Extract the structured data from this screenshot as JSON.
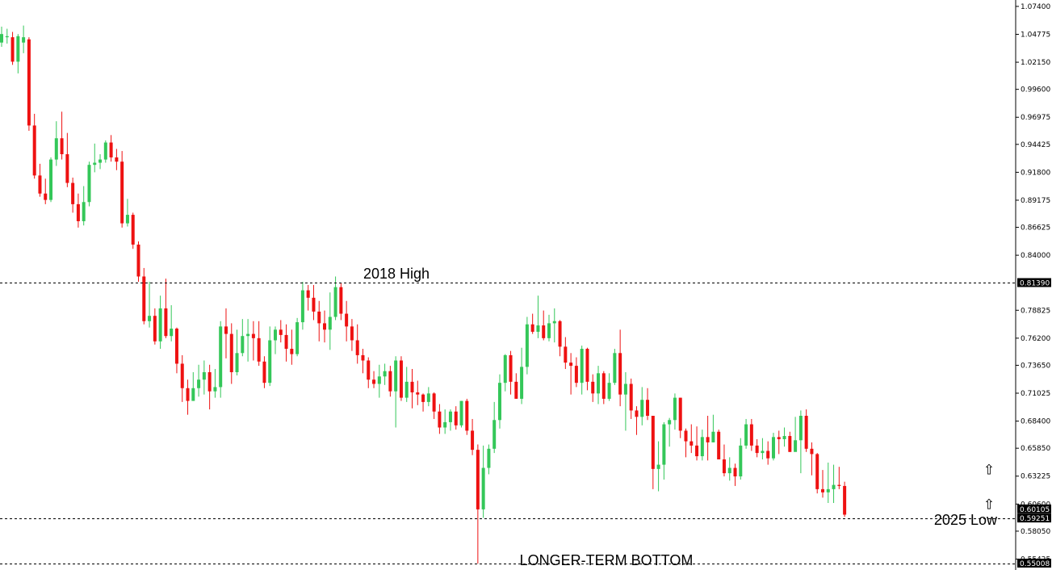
{
  "chart_data": {
    "type": "candlestick",
    "title": "",
    "xlabel": "",
    "ylabel": "",
    "ylim": [
      0.5455,
      1.0785
    ],
    "grid": false,
    "colors": {
      "up": "#34c759",
      "down": "#ee1111",
      "price_tag": "#000000",
      "line": "#000000"
    },
    "y_ticks": [
      "1.07400",
      "1.04775",
      "1.02150",
      "0.99600",
      "0.96975",
      "0.94425",
      "0.91800",
      "0.89175",
      "0.86625",
      "0.84000",
      "0.78825",
      "0.76200",
      "0.73650",
      "0.71025",
      "0.68400",
      "0.65850",
      "0.63225",
      "0.60600",
      "0.58050",
      "0.55425"
    ],
    "price_tags": [
      {
        "value": 0.8139,
        "label": "0.81390"
      },
      {
        "value": 0.60105,
        "label": "0.60105"
      },
      {
        "value": 0.59251,
        "label": "0.59251"
      },
      {
        "value": 0.55008,
        "label": "0.55008"
      }
    ],
    "levels": [
      {
        "value": 0.8139,
        "label": "2018 High"
      },
      {
        "value": 0.5925,
        "label": "2025 Low"
      },
      {
        "value": 0.5501,
        "label": "LONGER-TERM BOTTOM"
      }
    ],
    "arrows": [
      {
        "name": "up-arrow",
        "value": 0.6384
      },
      {
        "name": "up-arrow",
        "value": 0.606
      }
    ],
    "candles": [
      [
        1.04,
        1.048,
        1.055,
        1.036
      ],
      [
        1.045,
        1.046,
        1.053,
        1.039
      ],
      [
        1.045,
        1.022,
        1.05,
        1.019
      ],
      [
        1.022,
        1.046,
        1.048,
        1.011
      ],
      [
        1.04,
        1.045,
        1.056,
        1.03
      ],
      [
        1.043,
        0.962,
        1.045,
        0.957
      ],
      [
        0.962,
        0.915,
        0.973,
        0.912
      ],
      [
        0.915,
        0.898,
        0.926,
        0.895
      ],
      [
        0.898,
        0.892,
        0.912,
        0.888
      ],
      [
        0.892,
        0.93,
        0.932,
        0.89
      ],
      [
        0.93,
        0.95,
        0.966,
        0.924
      ],
      [
        0.95,
        0.935,
        0.975,
        0.93
      ],
      [
        0.935,
        0.908,
        0.955,
        0.904
      ],
      [
        0.908,
        0.888,
        0.913,
        0.88
      ],
      [
        0.888,
        0.872,
        0.898,
        0.866
      ],
      [
        0.872,
        0.89,
        0.905,
        0.868
      ],
      [
        0.89,
        0.925,
        0.928,
        0.886
      ],
      [
        0.925,
        0.927,
        0.945,
        0.918
      ],
      [
        0.927,
        0.93,
        0.935,
        0.921
      ],
      [
        0.93,
        0.946,
        0.948,
        0.927
      ],
      [
        0.946,
        0.932,
        0.953,
        0.928
      ],
      [
        0.932,
        0.928,
        0.94,
        0.92
      ],
      [
        0.928,
        0.87,
        0.938,
        0.866
      ],
      [
        0.87,
        0.878,
        0.893,
        0.867
      ],
      [
        0.878,
        0.85,
        0.88,
        0.846
      ],
      [
        0.85,
        0.82,
        0.853,
        0.815
      ],
      [
        0.82,
        0.778,
        0.828,
        0.775
      ],
      [
        0.778,
        0.783,
        0.815,
        0.772
      ],
      [
        0.783,
        0.759,
        0.79,
        0.756
      ],
      [
        0.759,
        0.79,
        0.802,
        0.752
      ],
      [
        0.79,
        0.764,
        0.818,
        0.762
      ],
      [
        0.764,
        0.771,
        0.793,
        0.759
      ],
      [
        0.771,
        0.738,
        0.772,
        0.729
      ],
      [
        0.738,
        0.715,
        0.746,
        0.702
      ],
      [
        0.715,
        0.703,
        0.723,
        0.69
      ],
      [
        0.703,
        0.715,
        0.73,
        0.703
      ],
      [
        0.715,
        0.723,
        0.737,
        0.707
      ],
      [
        0.723,
        0.73,
        0.741,
        0.709
      ],
      [
        0.73,
        0.712,
        0.737,
        0.695
      ],
      [
        0.712,
        0.716,
        0.733,
        0.706
      ],
      [
        0.716,
        0.773,
        0.778,
        0.706
      ],
      [
        0.773,
        0.766,
        0.79,
        0.743
      ],
      [
        0.766,
        0.73,
        0.776,
        0.719
      ],
      [
        0.73,
        0.748,
        0.77,
        0.727
      ],
      [
        0.748,
        0.764,
        0.78,
        0.745
      ],
      [
        0.764,
        0.766,
        0.78,
        0.74
      ],
      [
        0.766,
        0.762,
        0.778,
        0.741
      ],
      [
        0.762,
        0.74,
        0.778,
        0.736
      ],
      [
        0.74,
        0.72,
        0.745,
        0.715
      ],
      [
        0.72,
        0.76,
        0.773,
        0.717
      ],
      [
        0.76,
        0.77,
        0.773,
        0.747
      ],
      [
        0.77,
        0.765,
        0.779,
        0.758
      ],
      [
        0.765,
        0.752,
        0.775,
        0.74
      ],
      [
        0.752,
        0.747,
        0.77,
        0.737
      ],
      [
        0.747,
        0.777,
        0.781,
        0.745
      ],
      [
        0.777,
        0.807,
        0.815,
        0.77
      ],
      [
        0.807,
        0.8,
        0.812,
        0.788
      ],
      [
        0.8,
        0.787,
        0.812,
        0.779
      ],
      [
        0.787,
        0.776,
        0.797,
        0.759
      ],
      [
        0.776,
        0.77,
        0.788,
        0.758
      ],
      [
        0.77,
        0.782,
        0.805,
        0.751
      ],
      [
        0.782,
        0.81,
        0.82,
        0.779
      ],
      [
        0.81,
        0.785,
        0.814,
        0.779
      ],
      [
        0.785,
        0.773,
        0.797,
        0.759
      ],
      [
        0.773,
        0.76,
        0.78,
        0.75
      ],
      [
        0.76,
        0.746,
        0.775,
        0.738
      ],
      [
        0.746,
        0.741,
        0.752,
        0.729
      ],
      [
        0.741,
        0.723,
        0.744,
        0.715
      ],
      [
        0.723,
        0.719,
        0.731,
        0.715
      ],
      [
        0.719,
        0.726,
        0.737,
        0.706
      ],
      [
        0.726,
        0.731,
        0.738,
        0.718
      ],
      [
        0.731,
        0.712,
        0.736,
        0.707
      ],
      [
        0.712,
        0.741,
        0.745,
        0.678
      ],
      [
        0.741,
        0.706,
        0.745,
        0.703
      ],
      [
        0.706,
        0.721,
        0.735,
        0.702
      ],
      [
        0.721,
        0.711,
        0.733,
        0.696
      ],
      [
        0.711,
        0.709,
        0.722,
        0.699
      ],
      [
        0.709,
        0.702,
        0.71,
        0.693
      ],
      [
        0.702,
        0.71,
        0.716,
        0.698
      ],
      [
        0.71,
        0.693,
        0.711,
        0.686
      ],
      [
        0.693,
        0.678,
        0.7,
        0.672
      ],
      [
        0.678,
        0.683,
        0.695,
        0.672
      ],
      [
        0.683,
        0.693,
        0.695,
        0.675
      ],
      [
        0.693,
        0.68,
        0.698,
        0.676
      ],
      [
        0.68,
        0.703,
        0.703,
        0.678
      ],
      [
        0.703,
        0.675,
        0.705,
        0.671
      ],
      [
        0.675,
        0.657,
        0.686,
        0.652
      ],
      [
        0.657,
        0.601,
        0.662,
        0.55
      ],
      [
        0.601,
        0.64,
        0.661,
        0.593
      ],
      [
        0.64,
        0.658,
        0.662,
        0.634
      ],
      [
        0.658,
        0.685,
        0.702,
        0.654
      ],
      [
        0.685,
        0.72,
        0.728,
        0.677
      ],
      [
        0.72,
        0.746,
        0.747,
        0.712
      ],
      [
        0.746,
        0.721,
        0.75,
        0.709
      ],
      [
        0.721,
        0.705,
        0.729,
        0.705
      ],
      [
        0.705,
        0.735,
        0.753,
        0.7
      ],
      [
        0.735,
        0.775,
        0.782,
        0.728
      ],
      [
        0.775,
        0.768,
        0.785,
        0.766
      ],
      [
        0.768,
        0.774,
        0.802,
        0.762
      ],
      [
        0.774,
        0.762,
        0.788,
        0.76
      ],
      [
        0.762,
        0.776,
        0.784,
        0.759
      ],
      [
        0.776,
        0.778,
        0.79,
        0.758
      ],
      [
        0.778,
        0.754,
        0.779,
        0.745
      ],
      [
        0.754,
        0.739,
        0.763,
        0.733
      ],
      [
        0.739,
        0.736,
        0.748,
        0.709
      ],
      [
        0.736,
        0.72,
        0.744,
        0.716
      ],
      [
        0.72,
        0.752,
        0.755,
        0.709
      ],
      [
        0.752,
        0.721,
        0.753,
        0.713
      ],
      [
        0.721,
        0.71,
        0.728,
        0.702
      ],
      [
        0.71,
        0.729,
        0.736,
        0.7
      ],
      [
        0.729,
        0.705,
        0.731,
        0.7
      ],
      [
        0.705,
        0.72,
        0.729,
        0.703
      ],
      [
        0.72,
        0.748,
        0.752,
        0.718
      ],
      [
        0.748,
        0.709,
        0.77,
        0.698
      ],
      [
        0.709,
        0.719,
        0.73,
        0.675
      ],
      [
        0.719,
        0.694,
        0.724,
        0.686
      ],
      [
        0.694,
        0.688,
        0.698,
        0.671
      ],
      [
        0.688,
        0.704,
        0.716,
        0.68
      ],
      [
        0.704,
        0.689,
        0.715,
        0.685
      ],
      [
        0.689,
        0.639,
        0.689,
        0.62
      ],
      [
        0.639,
        0.643,
        0.665,
        0.618
      ],
      [
        0.643,
        0.681,
        0.683,
        0.629
      ],
      [
        0.681,
        0.685,
        0.687,
        0.66
      ],
      [
        0.685,
        0.706,
        0.71,
        0.676
      ],
      [
        0.706,
        0.675,
        0.706,
        0.668
      ],
      [
        0.675,
        0.665,
        0.677,
        0.65
      ],
      [
        0.665,
        0.661,
        0.681,
        0.654
      ],
      [
        0.661,
        0.651,
        0.679,
        0.647
      ],
      [
        0.651,
        0.669,
        0.676,
        0.647
      ],
      [
        0.669,
        0.664,
        0.689,
        0.647
      ],
      [
        0.664,
        0.674,
        0.69,
        0.664
      ],
      [
        0.674,
        0.648,
        0.676,
        0.648
      ],
      [
        0.648,
        0.635,
        0.662,
        0.632
      ],
      [
        0.635,
        0.64,
        0.65,
        0.628
      ],
      [
        0.64,
        0.632,
        0.644,
        0.623
      ],
      [
        0.632,
        0.661,
        0.668,
        0.629
      ],
      [
        0.661,
        0.681,
        0.686,
        0.658
      ],
      [
        0.681,
        0.661,
        0.686,
        0.656
      ],
      [
        0.661,
        0.654,
        0.667,
        0.65
      ],
      [
        0.654,
        0.656,
        0.668,
        0.648
      ],
      [
        0.656,
        0.649,
        0.665,
        0.643
      ],
      [
        0.649,
        0.669,
        0.673,
        0.647
      ],
      [
        0.669,
        0.667,
        0.675,
        0.653
      ],
      [
        0.667,
        0.67,
        0.678,
        0.66
      ],
      [
        0.67,
        0.655,
        0.674,
        0.655
      ],
      [
        0.655,
        0.666,
        0.688,
        0.664
      ],
      [
        0.666,
        0.689,
        0.694,
        0.635
      ],
      [
        0.689,
        0.658,
        0.695,
        0.655
      ],
      [
        0.658,
        0.653,
        0.664,
        0.633
      ],
      [
        0.653,
        0.62,
        0.654,
        0.616
      ],
      [
        0.62,
        0.617,
        0.638,
        0.612
      ],
      [
        0.617,
        0.62,
        0.645,
        0.607
      ],
      [
        0.62,
        0.624,
        0.643,
        0.607
      ],
      [
        0.624,
        0.623,
        0.641,
        0.62
      ],
      [
        0.623,
        0.596,
        0.627,
        0.594
      ]
    ]
  }
}
